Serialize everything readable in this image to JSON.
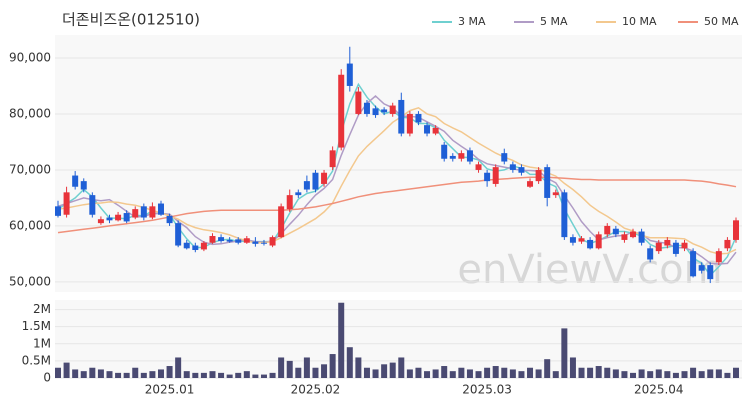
{
  "chart_data": [
    {
      "type": "candlestick",
      "title": "더존비즈온(012510)",
      "watermark": "enViewV.com",
      "up_color": "#e8333a",
      "down_color": "#1f5fd6",
      "grid": true,
      "legend": "top-right",
      "ylim": [
        48200,
        94100
      ],
      "yticks": [
        {
          "value": 50000,
          "label": "50,000"
        },
        {
          "value": 60000,
          "label": "60,000"
        },
        {
          "value": 70000,
          "label": "70,000"
        },
        {
          "value": 80000,
          "label": "80,000"
        },
        {
          "value": 90000,
          "label": "90,000"
        }
      ],
      "open": [
        63500,
        62000,
        69000,
        68000,
        65500,
        60500,
        61500,
        61000,
        62300,
        61500,
        63500,
        61500,
        64000,
        61800,
        60500,
        57000,
        56500,
        55800,
        57000,
        58000,
        57500,
        57600,
        57000,
        57200,
        57000,
        56500,
        58000,
        63000,
        66000,
        68000,
        69500,
        67500,
        70500,
        74000,
        89000,
        80000,
        82000,
        81000,
        80800,
        80000,
        82500,
        76500,
        80000,
        78000,
        76500,
        74500,
        72500,
        72000,
        73500,
        70000,
        69500,
        67500,
        73000,
        71000,
        70500,
        67000,
        68000,
        70500,
        65500,
        66000,
        58000,
        57200,
        57500,
        56000,
        58500,
        59500,
        57500,
        58000,
        59000,
        56000,
        55500,
        56500,
        57000,
        56000,
        55500,
        53000,
        53000,
        53500,
        56000,
        57500
      ],
      "high": [
        64500,
        67000,
        69800,
        68500,
        66000,
        61700,
        62000,
        62500,
        62800,
        63500,
        64000,
        64200,
        64500,
        62200,
        61000,
        57500,
        57000,
        57300,
        58700,
        58500,
        58000,
        58000,
        58200,
        58000,
        57500,
        58300,
        64000,
        66500,
        66500,
        69000,
        70000,
        70000,
        74200,
        88000,
        92000,
        84800,
        82500,
        81500,
        81200,
        82000,
        83800,
        80500,
        80500,
        78500,
        78000,
        75000,
        73000,
        73500,
        74000,
        71500,
        70000,
        71000,
        73800,
        71500,
        71000,
        68500,
        70500,
        71000,
        66500,
        66500,
        58500,
        58200,
        58000,
        59000,
        60500,
        60000,
        59000,
        59500,
        59500,
        56500,
        57500,
        58000,
        57500,
        57500,
        56000,
        53500,
        53500,
        56000,
        58000,
        61500
      ],
      "low": [
        61500,
        61500,
        66500,
        66000,
        61500,
        60200,
        60500,
        60800,
        60500,
        61200,
        61000,
        61200,
        61800,
        60000,
        56200,
        55800,
        55300,
        55500,
        56800,
        57000,
        57000,
        56700,
        56800,
        56300,
        56500,
        56200,
        57800,
        62500,
        65000,
        66000,
        66000,
        67000,
        70000,
        73500,
        84000,
        79800,
        79500,
        79300,
        79800,
        79500,
        76000,
        76000,
        78000,
        76000,
        76200,
        71500,
        71500,
        71500,
        71000,
        69500,
        67000,
        67000,
        71000,
        69500,
        69000,
        66800,
        67500,
        63500,
        65000,
        57500,
        56500,
        56800,
        55800,
        55800,
        58000,
        58000,
        57000,
        57800,
        56500,
        53500,
        55000,
        56000,
        54500,
        55500,
        50800,
        51500,
        49800,
        53000,
        55500,
        57000
      ],
      "close": [
        61800,
        66000,
        67000,
        66500,
        62000,
        61200,
        61000,
        62000,
        60800,
        63000,
        61500,
        63500,
        62000,
        60500,
        56500,
        56000,
        55700,
        57000,
        58200,
        57300,
        57200,
        57000,
        57800,
        56800,
        56900,
        58000,
        63500,
        65500,
        65500,
        66500,
        66500,
        69500,
        73500,
        87000,
        85000,
        84000,
        80000,
        79800,
        80300,
        81500,
        76500,
        80000,
        78500,
        76500,
        77500,
        72000,
        72000,
        73000,
        71500,
        71000,
        68000,
        70500,
        71500,
        70000,
        69500,
        68000,
        70000,
        65000,
        66000,
        58000,
        57000,
        57800,
        56000,
        58500,
        60000,
        58500,
        58500,
        59000,
        57000,
        54000,
        57000,
        57500,
        55000,
        57000,
        51000,
        52000,
        50500,
        55500,
        57500,
        61000
      ],
      "series": [
        {
          "name": "3 MA",
          "color": "#6fd0d0",
          "values": [
            63000,
            64000,
            65000,
            66500,
            65200,
            63200,
            61400,
            61400,
            61300,
            61900,
            61800,
            62700,
            62300,
            62000,
            59700,
            57700,
            56100,
            56200,
            57000,
            57500,
            57600,
            57200,
            57300,
            57200,
            57200,
            57200,
            59500,
            62300,
            64800,
            65800,
            66200,
            67500,
            69800,
            76700,
            81800,
            85300,
            83000,
            81300,
            80000,
            80500,
            79400,
            79300,
            78300,
            78300,
            77500,
            75300,
            73800,
            72300,
            72200,
            71800,
            70200,
            69800,
            70000,
            70700,
            70300,
            69200,
            69200,
            67700,
            67000,
            63000,
            60300,
            57600,
            56900,
            57400,
            58200,
            59000,
            59000,
            58700,
            58200,
            56700,
            56000,
            56200,
            56500,
            56500,
            54300,
            53300,
            51200,
            52700,
            54500,
            58000
          ]
        },
        {
          "name": "5 MA",
          "color": "#b09cc6",
          "values": [
            63500,
            64000,
            64500,
            65000,
            64700,
            64500,
            64700,
            63700,
            62600,
            61600,
            61700,
            62200,
            62200,
            62100,
            60800,
            59700,
            58100,
            57100,
            56700,
            56800,
            57100,
            57300,
            57500,
            57200,
            57100,
            57300,
            58600,
            60300,
            61900,
            63800,
            65500,
            66700,
            68300,
            72600,
            76300,
            79800,
            81900,
            83200,
            81800,
            81100,
            79600,
            79600,
            79400,
            78600,
            77800,
            76900,
            75300,
            74200,
            73200,
            71900,
            71100,
            70800,
            70500,
            70200,
            69900,
            69900,
            69800,
            68500,
            67700,
            65400,
            63200,
            60800,
            59000,
            57500,
            57900,
            58200,
            58300,
            58900,
            58600,
            57400,
            57100,
            56900,
            56100,
            56100,
            55500,
            54500,
            53300,
            53200,
            53300,
            55300
          ]
        },
        {
          "name": "10 MA",
          "color": "#f3c88e",
          "values": [
            63000,
            63200,
            63500,
            63800,
            64000,
            64100,
            64300,
            64200,
            63900,
            63700,
            63300,
            62800,
            62300,
            61800,
            61200,
            60300,
            59700,
            59300,
            59100,
            58800,
            58400,
            57800,
            57300,
            57000,
            57000,
            57200,
            57900,
            58700,
            59500,
            60400,
            61300,
            62500,
            64100,
            67100,
            69900,
            72500,
            74200,
            75600,
            77000,
            78500,
            79500,
            80600,
            81100,
            80000,
            79500,
            78300,
            77500,
            76800,
            75800,
            74800,
            73900,
            73000,
            72300,
            71700,
            70900,
            70500,
            70300,
            69500,
            68900,
            67600,
            66500,
            65200,
            63700,
            62600,
            61700,
            60700,
            59600,
            59100,
            58300,
            57900,
            57900,
            57900,
            57800,
            57700,
            56800,
            56200,
            55400,
            55000,
            55100,
            55800
          ]
        },
        {
          "name": "50 MA",
          "color": "#f0907a",
          "values": [
            58800,
            59000,
            59200,
            59400,
            59600,
            59800,
            60000,
            60200,
            60400,
            60600,
            60800,
            61000,
            61300,
            61600,
            61900,
            62200,
            62400,
            62600,
            62700,
            62800,
            62800,
            62800,
            62800,
            62800,
            62800,
            62800,
            62800,
            62900,
            63000,
            63200,
            63400,
            63700,
            64000,
            64400,
            64800,
            65200,
            65500,
            65800,
            66000,
            66200,
            66400,
            66600,
            66800,
            67000,
            67200,
            67400,
            67600,
            67800,
            67900,
            68000,
            68200,
            68300,
            68400,
            68500,
            68600,
            68700,
            68700,
            68700,
            68600,
            68500,
            68400,
            68300,
            68300,
            68200,
            68200,
            68200,
            68200,
            68200,
            68200,
            68200,
            68200,
            68200,
            68200,
            68200,
            68100,
            68000,
            67800,
            67500,
            67300,
            67000
          ]
        }
      ]
    },
    {
      "type": "bar",
      "color": "#4a4a72",
      "grid": true,
      "ylim": [
        0,
        2280000
      ],
      "yticks": [
        0,
        {
          "value": 500000,
          "label": "0.5M"
        },
        {
          "value": 1000000,
          "label": "1M"
        },
        {
          "value": 1500000,
          "label": "1.5M"
        },
        {
          "value": 2000000,
          "label": "2M"
        }
      ],
      "categories": [
        null,
        null,
        null,
        null,
        null,
        null,
        null,
        null,
        null,
        null,
        null,
        null,
        null,
        "2025.01",
        null,
        null,
        null,
        null,
        null,
        null,
        null,
        null,
        null,
        null,
        null,
        null,
        null,
        null,
        null,
        null,
        "2025.02",
        null,
        null,
        null,
        null,
        null,
        null,
        null,
        null,
        null,
        null,
        null,
        null,
        null,
        null,
        null,
        null,
        null,
        null,
        null,
        "2025.03",
        null,
        null,
        null,
        null,
        null,
        null,
        null,
        null,
        null,
        null,
        null,
        null,
        null,
        null,
        null,
        null,
        null,
        null,
        null,
        "2025.04",
        null,
        null,
        null,
        null,
        null,
        null,
        null,
        null,
        null
      ],
      "values": [
        300000,
        450000,
        250000,
        200000,
        300000,
        250000,
        200000,
        150000,
        150000,
        300000,
        150000,
        200000,
        250000,
        350000,
        600000,
        200000,
        150000,
        150000,
        200000,
        150000,
        100000,
        150000,
        200000,
        100000,
        100000,
        150000,
        600000,
        500000,
        300000,
        600000,
        300000,
        400000,
        700000,
        2200000,
        900000,
        600000,
        300000,
        250000,
        400000,
        450000,
        600000,
        250000,
        300000,
        200000,
        250000,
        350000,
        200000,
        300000,
        250000,
        200000,
        300000,
        350000,
        300000,
        250000,
        200000,
        300000,
        250000,
        550000,
        200000,
        1450000,
        600000,
        300000,
        300000,
        350000,
        300000,
        250000,
        200000,
        150000,
        250000,
        200000,
        250000,
        200000,
        150000,
        200000,
        300000,
        200000,
        250000,
        250000,
        150000,
        300000
      ]
    }
  ]
}
